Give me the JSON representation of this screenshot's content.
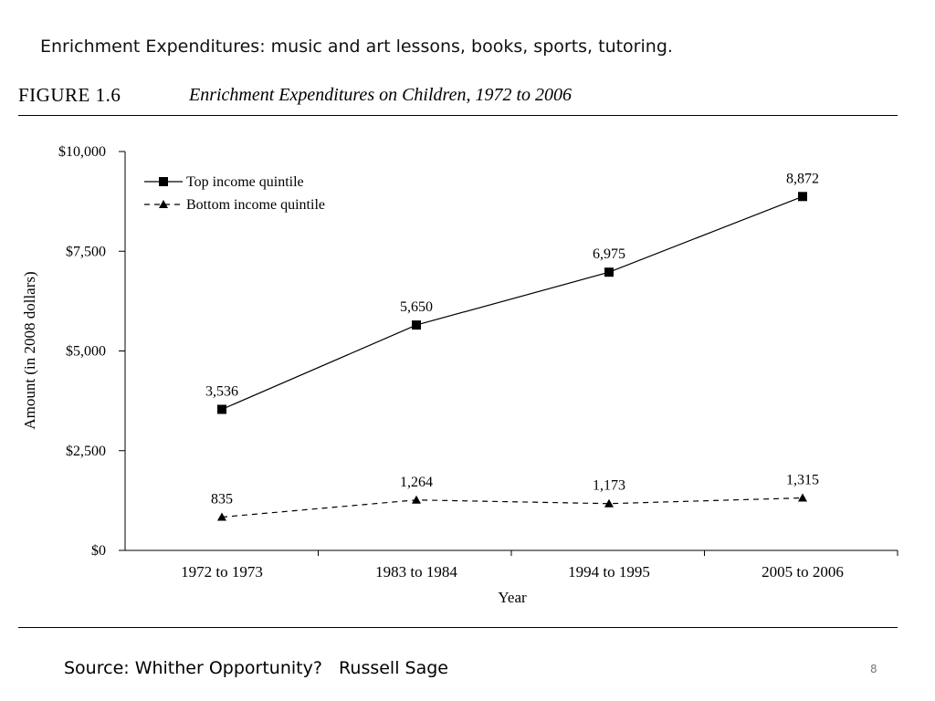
{
  "slide": {
    "heading": "Enrichment Expenditures: music and art lessons, books, sports, tutoring.",
    "source": "Source: Whither Opportunity?   Russell Sage",
    "page_number": "8"
  },
  "figure": {
    "number": "FIGURE 1.6",
    "title": "Enrichment Expenditures on Children, 1972 to 2006"
  },
  "chart_data": {
    "type": "line",
    "categories": [
      "1972 to 1973",
      "1983 to 1984",
      "1994 to 1995",
      "2005 to 2006"
    ],
    "xlabel": "Year",
    "ylabel": "Amount (in 2008 dollars)",
    "ylim": [
      0,
      10000
    ],
    "yticks": [
      0,
      2500,
      5000,
      7500,
      10000
    ],
    "ytick_labels": [
      "$0",
      "$2,500",
      "$5,000",
      "$7,500",
      "$10,000"
    ],
    "grid": false,
    "legend_position": "top-left",
    "series": [
      {
        "name": "Top income quintile",
        "marker": "square",
        "line_style": "solid",
        "values": [
          3536,
          5650,
          6975,
          8872
        ],
        "labels": [
          "3,536",
          "5,650",
          "6,975",
          "8,872"
        ]
      },
      {
        "name": "Bottom income quintile",
        "marker": "triangle",
        "line_style": "dashed",
        "values": [
          835,
          1264,
          1173,
          1315
        ],
        "labels": [
          "835",
          "1,264",
          "1,173",
          "1,315"
        ]
      }
    ]
  }
}
